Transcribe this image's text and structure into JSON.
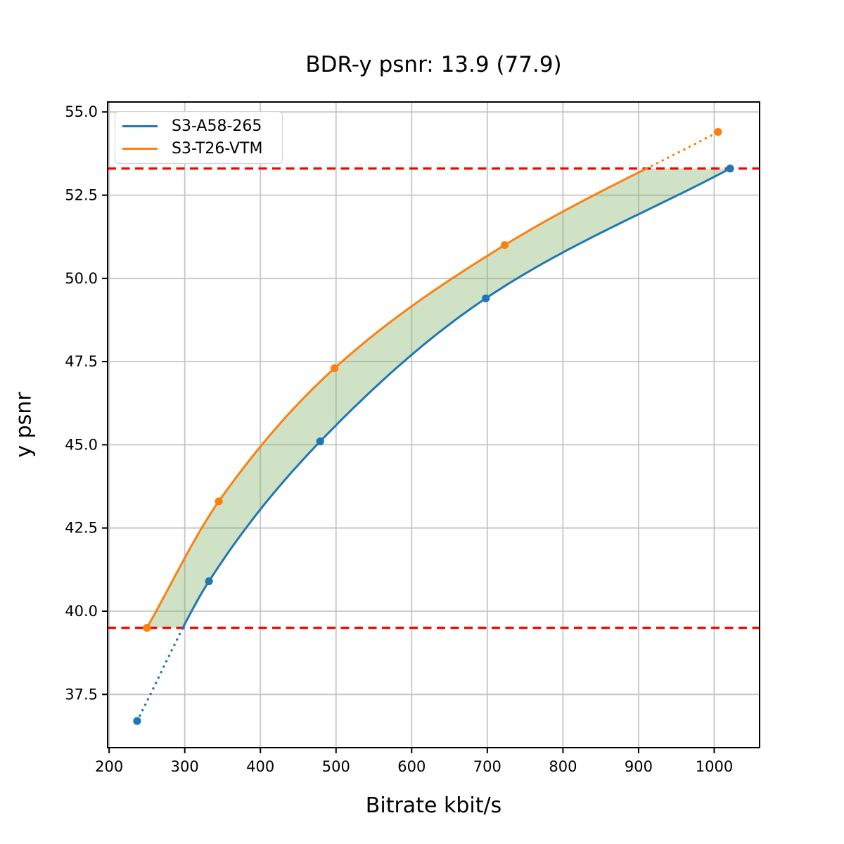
{
  "figure": {
    "title": "BDR-y psnr: 13.9 (77.9)",
    "xlabel": "Bitrate kbit/s",
    "ylabel": "y psnr"
  },
  "chart_data": {
    "type": "line",
    "title": "BDR-y psnr: 13.9 (77.9)",
    "xlabel": "Bitrate kbit/s",
    "ylabel": "y psnr",
    "xlim": [
      198,
      1060
    ],
    "ylim": [
      35.9,
      55.3
    ],
    "xticks": {
      "values": [
        200,
        300,
        400,
        500,
        600,
        700,
        800,
        900,
        1000
      ],
      "labels": [
        "200",
        "300",
        "400",
        "500",
        "600",
        "700",
        "800",
        "900",
        "1000"
      ]
    },
    "yticks": {
      "values": [
        37.5,
        40.0,
        42.5,
        45.0,
        47.5,
        50.0,
        52.5,
        55.0
      ],
      "labels": [
        "37.5",
        "40.0",
        "42.5",
        "45.0",
        "47.5",
        "50.0",
        "52.5",
        "55.0"
      ]
    },
    "grid": true,
    "legend_position": "upper left",
    "series": [
      {
        "name": "S3-A58-265",
        "color": "#1f77b4",
        "x": [
          237,
          332,
          479,
          698,
          1021
        ],
        "y": [
          36.7,
          40.9,
          45.1,
          49.4,
          53.3
        ]
      },
      {
        "name": "S3-T26-VTM",
        "color": "#ff7f0e",
        "x": [
          250,
          345,
          498,
          723,
          1005
        ],
        "y": [
          39.5,
          43.3,
          47.3,
          51.0,
          54.4
        ]
      }
    ],
    "hlines": {
      "values": [
        39.5,
        53.3
      ],
      "color": "#ff0000",
      "style": "dashed"
    },
    "overlap_psnr_range": [
      39.5,
      53.3
    ],
    "fill_between": {
      "color": "#77ac5a",
      "opacity": 0.35
    },
    "colors": {
      "grid": "#c6c6c6",
      "spine": "#000000",
      "tick_label": "#000000"
    }
  }
}
